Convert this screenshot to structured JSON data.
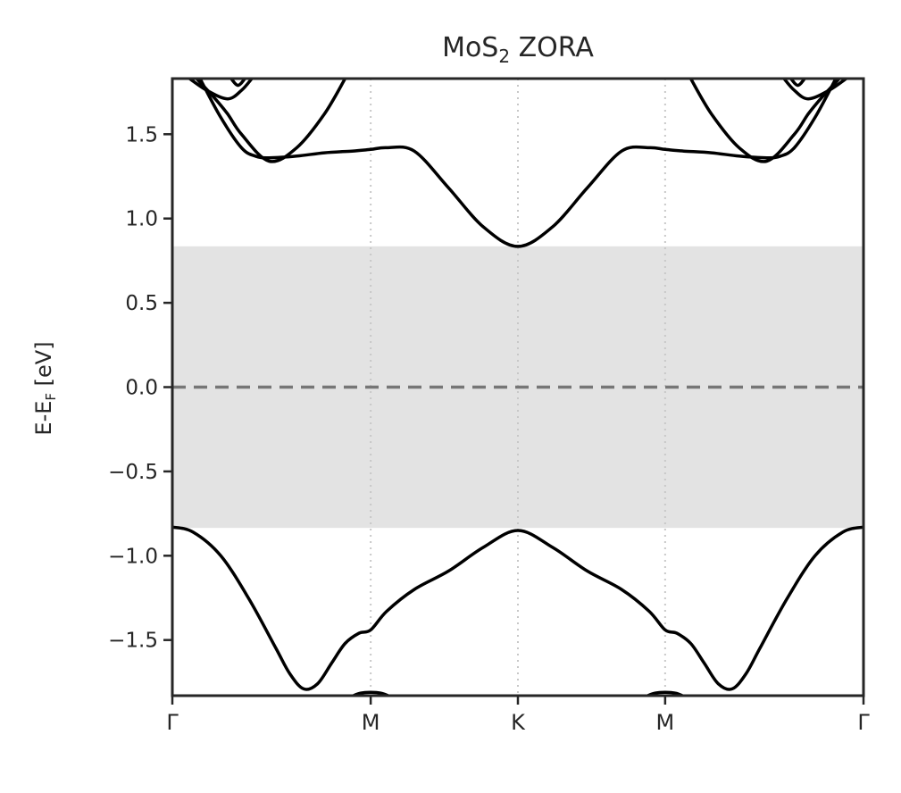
{
  "chart_data": {
    "type": "line",
    "title": {
      "base": "MoS",
      "sub": "2",
      "rest": " ZORA"
    },
    "ylabel": {
      "base": "E-E",
      "sub": "F",
      "rest": " [eV]"
    },
    "xlabel": "",
    "ylim": [
      -1.83,
      1.83
    ],
    "y_ticks": [
      -1.5,
      -1.0,
      -0.5,
      0.0,
      0.5,
      1.0,
      1.5
    ],
    "y_tick_labels": [
      "−1.5",
      "−1.0",
      "−0.5",
      "0.0",
      "0.5",
      "1.0",
      "1.5"
    ],
    "x_ticks": [
      0.0,
      0.287,
      0.5,
      0.713,
      1.0
    ],
    "x_tick_labels": [
      "Γ",
      "M",
      "K",
      "M",
      "Γ"
    ],
    "xlim": [
      0.0,
      1.0
    ],
    "band_gap_region": [
      -0.835,
      0.835
    ],
    "fermi_level": 0.0,
    "colors": {
      "band": "#000000",
      "gap": "#e3e3e3",
      "fermi": "#767676",
      "grid": "#c8c8c8",
      "axes": "#262626"
    },
    "series": [
      {
        "name": "valence-band-1",
        "x": [
          0,
          0.03,
          0.07,
          0.11,
          0.15,
          0.17,
          0.19,
          0.21,
          0.23,
          0.25,
          0.27,
          0.287,
          0.31,
          0.35,
          0.4,
          0.45,
          0.5,
          0.55,
          0.6,
          0.65,
          0.69,
          0.713,
          0.73,
          0.75,
          0.77,
          0.79,
          0.81,
          0.83,
          0.85,
          0.89,
          0.93,
          0.97,
          1.0
        ],
        "y": [
          -0.83,
          -0.86,
          -1.0,
          -1.25,
          -1.55,
          -1.7,
          -1.79,
          -1.76,
          -1.64,
          -1.52,
          -1.46,
          -1.44,
          -1.33,
          -1.2,
          -1.09,
          -0.95,
          -0.85,
          -0.95,
          -1.09,
          -1.2,
          -1.33,
          -1.44,
          -1.46,
          -1.52,
          -1.64,
          -1.76,
          -1.79,
          -1.7,
          -1.55,
          -1.25,
          -1.0,
          -0.86,
          -0.83
        ]
      },
      {
        "name": "valence-band-2-left",
        "x": [
          0.262,
          0.272,
          0.287,
          0.302,
          0.312
        ],
        "y": [
          -1.83,
          -1.815,
          -1.81,
          -1.815,
          -1.83
        ]
      },
      {
        "name": "valence-band-2-right",
        "x": [
          0.688,
          0.698,
          0.713,
          0.728,
          0.738
        ],
        "y": [
          -1.83,
          -1.815,
          -1.81,
          -1.815,
          -1.83
        ]
      },
      {
        "name": "conduction-band-1",
        "x": [
          0.04,
          0.07,
          0.1,
          0.12,
          0.14,
          0.18,
          0.22,
          0.26,
          0.287,
          0.31,
          0.35,
          0.4,
          0.45,
          0.5,
          0.55,
          0.6,
          0.65,
          0.69,
          0.713,
          0.74,
          0.78,
          0.82,
          0.86,
          0.88,
          0.9,
          0.93,
          0.96
        ],
        "y": [
          1.83,
          1.6,
          1.42,
          1.37,
          1.36,
          1.37,
          1.39,
          1.4,
          1.41,
          1.42,
          1.4,
          1.18,
          0.95,
          0.835,
          0.95,
          1.18,
          1.4,
          1.42,
          1.41,
          1.4,
          1.39,
          1.37,
          1.36,
          1.37,
          1.42,
          1.6,
          1.83
        ]
      },
      {
        "name": "conduction-band-2",
        "x": [
          0.035,
          0.06,
          0.08,
          0.1,
          0.14,
          0.18,
          0.22,
          0.25
        ],
        "y": [
          1.83,
          1.72,
          1.62,
          1.5,
          1.34,
          1.42,
          1.62,
          1.83
        ]
      },
      {
        "name": "conduction-band-2-mirror",
        "x": [
          0.75,
          0.78,
          0.82,
          0.86,
          0.9,
          0.92,
          0.94,
          0.965
        ],
        "y": [
          1.83,
          1.62,
          1.42,
          1.34,
          1.5,
          1.62,
          1.72,
          1.83
        ]
      },
      {
        "name": "conduction-band-3",
        "x": [
          0.025,
          0.05,
          0.08,
          0.1,
          0.115
        ],
        "y": [
          1.83,
          1.76,
          1.71,
          1.76,
          1.83
        ]
      },
      {
        "name": "conduction-band-3-mirror",
        "x": [
          0.885,
          0.9,
          0.92,
          0.95,
          0.975
        ],
        "y": [
          1.83,
          1.76,
          1.71,
          1.76,
          1.83
        ]
      },
      {
        "name": "conduction-band-4",
        "x": [
          0.085,
          0.095,
          0.105
        ],
        "y": [
          1.83,
          1.79,
          1.83
        ]
      },
      {
        "name": "conduction-band-4-mirror",
        "x": [
          0.895,
          0.905,
          0.915
        ],
        "y": [
          1.83,
          1.79,
          1.83
        ]
      }
    ]
  }
}
